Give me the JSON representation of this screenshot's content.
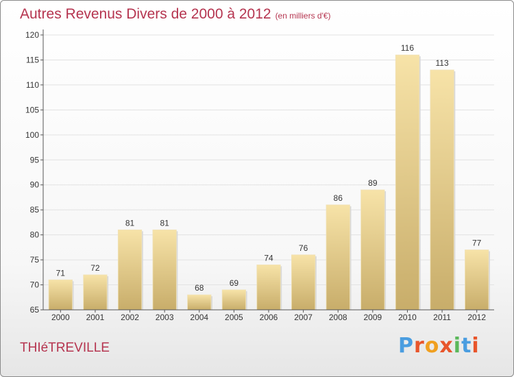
{
  "title": "Autres Revenus Divers de 2000 à 2012",
  "unit": "(en milliers d'€)",
  "place": "THIéTREVILLE",
  "brand": {
    "parts": [
      "P",
      "r",
      "o",
      "x",
      "i",
      "t",
      "i"
    ]
  },
  "colors": {
    "title": "#b5344f",
    "bar_light": "#f5dea0",
    "bar_dark": "#c9ae6a",
    "axis": "#555555",
    "grid": "#e2e2e2"
  },
  "chart_data": {
    "type": "bar",
    "categories": [
      "2000",
      "2001",
      "2002",
      "2003",
      "2004",
      "2005",
      "2006",
      "2007",
      "2008",
      "2009",
      "2010",
      "2011",
      "2012"
    ],
    "values": [
      71,
      72,
      81,
      81,
      68,
      69,
      74,
      76,
      86,
      89,
      116,
      113,
      77
    ],
    "yticks": [
      65,
      70,
      75,
      80,
      85,
      90,
      95,
      100,
      105,
      110,
      115,
      120
    ],
    "ylim": [
      65,
      120
    ],
    "grid": true,
    "xlabel": "",
    "ylabel": ""
  }
}
